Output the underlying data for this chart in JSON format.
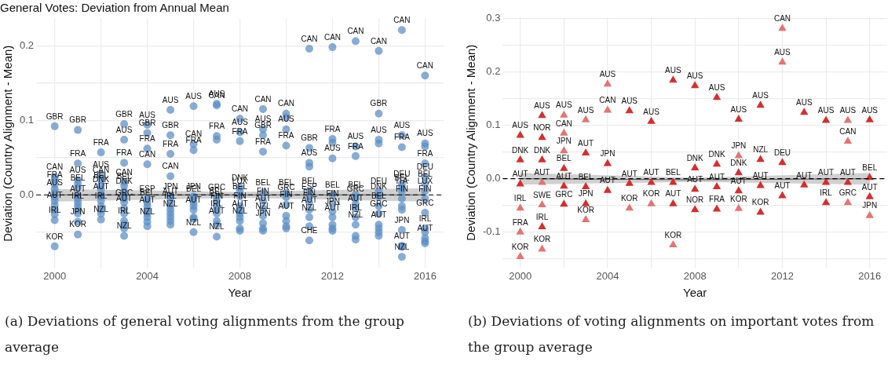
{
  "chart_data": [
    {
      "type": "scatter",
      "title": "General Votes: Deviation from Annual Mean",
      "xlabel": "Year",
      "ylabel": "Deviation (Country Alignment - Mean)",
      "marker": "circle",
      "grid": true,
      "xlim": [
        1999.2,
        2016.8
      ],
      "ylim": [
        -0.098,
        0.236
      ],
      "xticks": [
        2000,
        {
          "value": 2002,
          "label": null
        },
        2004,
        {
          "value": 2006,
          "label": null
        },
        2008,
        {
          "value": 2010,
          "label": null
        },
        2012,
        {
          "value": 2014,
          "label": null
        },
        2016
      ],
      "yticks": [
        {
          "value": -0.05,
          "label": null
        },
        {
          "value": 0,
          "label": "0.0"
        },
        {
          "value": 0.05,
          "label": null
        },
        {
          "value": 0.1,
          "label": "0.1"
        },
        {
          "value": 0.15,
          "label": null
        },
        {
          "value": 0.2,
          "label": "0.2"
        }
      ],
      "ref_lines": [
        {
          "axis": "y",
          "value": 0,
          "color": "#000000",
          "line_style": "dashed"
        }
      ],
      "series": [
        {
          "color": "#5b8ec6",
          "x": [
            2000,
            2000,
            2000,
            2000,
            2000,
            2000,
            2000,
            2000,
            2000,
            2000,
            2000,
            2000,
            2000,
            2001,
            2001,
            2001,
            2001,
            2001,
            2001,
            2001,
            2001,
            2001,
            2001,
            2001,
            2001,
            2001,
            2002,
            2002,
            2002,
            2002,
            2002,
            2002,
            2002,
            2002,
            2002,
            2002,
            2002,
            2002,
            2003,
            2003,
            2003,
            2003,
            2003,
            2003,
            2003,
            2003,
            2003,
            2003,
            2003,
            2003,
            2003,
            2003,
            2003,
            2004,
            2004,
            2004,
            2004,
            2004,
            2004,
            2004,
            2004,
            2004,
            2004,
            2004,
            2004,
            2005,
            2005,
            2005,
            2005,
            2005,
            2005,
            2005,
            2005,
            2005,
            2005,
            2005,
            2005,
            2006,
            2006,
            2006,
            2006,
            2006,
            2006,
            2006,
            2006,
            2006,
            2006,
            2006,
            2007,
            2007,
            2007,
            2007,
            2007,
            2007,
            2007,
            2007,
            2007,
            2007,
            2007,
            2007,
            2008,
            2008,
            2008,
            2008,
            2008,
            2008,
            2008,
            2008,
            2008,
            2008,
            2008,
            2008,
            2008,
            2009,
            2009,
            2009,
            2009,
            2009,
            2009,
            2009,
            2009,
            2009,
            2009,
            2009,
            2010,
            2010,
            2010,
            2010,
            2010,
            2010,
            2010,
            2010,
            2010,
            2010,
            2010,
            2011,
            2011,
            2011,
            2011,
            2011,
            2011,
            2011,
            2011,
            2011,
            2011,
            2011,
            2012,
            2012,
            2012,
            2012,
            2012,
            2012,
            2012,
            2012,
            2012,
            2012,
            2012,
            2013,
            2013,
            2013,
            2013,
            2013,
            2013,
            2013,
            2013,
            2013,
            2013,
            2013,
            2014,
            2014,
            2014,
            2014,
            2014,
            2014,
            2014,
            2014,
            2014,
            2014,
            2014,
            2014,
            2015,
            2015,
            2015,
            2015,
            2015,
            2015,
            2015,
            2015,
            2015,
            2015,
            2015,
            2015,
            2015,
            2016,
            2016,
            2016,
            2016,
            2016,
            2016,
            2016,
            2016,
            2016,
            2016,
            2016,
            2016,
            2016,
            2016
          ],
          "values": [
            0.092,
            0.024,
            0.014,
            0.003,
            -0.014,
            -0.034,
            -0.069,
            0.02,
            0.008,
            -0.003,
            -0.008,
            -0.02,
            -0.026,
            0.087,
            0.042,
            0.02,
            0.01,
            -0.005,
            -0.015,
            -0.036,
            -0.053,
            0.015,
            0,
            -0.01,
            -0.02,
            -0.025,
            0.057,
            0.027,
            0.02,
            0.013,
            0.007,
            -0.002,
            -0.015,
            -0.033,
            0,
            -0.008,
            -0.02,
            -0.025,
            0.095,
            0.074,
            0.043,
            0.017,
            0.012,
            0.005,
            -0.01,
            -0.018,
            -0.035,
            -0.055,
            0,
            -0.005,
            -0.025,
            -0.04,
            -0.045,
            0.094,
            0.083,
            0.062,
            0.041,
            -0.005,
            -0.01,
            -0.02,
            -0.036,
            -0.015,
            -0.025,
            -0.03,
            -0.042,
            0.114,
            0.08,
            0.055,
            0.025,
            -0.002,
            -0.008,
            -0.015,
            -0.025,
            -0.035,
            -0.04,
            -0.03,
            -0.02,
            0.119,
            0.068,
            0.06,
            -0.002,
            -0.005,
            -0.02,
            -0.05,
            -0.01,
            -0.015,
            -0.03,
            -0.032,
            0.122,
            0.12,
            0.079,
            -0.003,
            -0.008,
            -0.015,
            -0.025,
            -0.035,
            -0.056,
            0.074,
            -0.04,
            -0.02,
            0.102,
            0.084,
            0.072,
            0.01,
            0.005,
            -0.002,
            -0.015,
            -0.025,
            -0.035,
            -0.045,
            -0.048,
            -0.03,
            -0.02,
            0.115,
            0.088,
            0.08,
            0.058,
            0.003,
            -0.008,
            -0.018,
            -0.028,
            -0.038,
            -0.045,
            -0.048,
            0.109,
            0.088,
            0.066,
            0.003,
            -0.003,
            -0.013,
            -0.028,
            0.104,
            -0.035,
            -0.042,
            -0.045,
            0.196,
            0.063,
            0.043,
            0.005,
            -0.002,
            -0.01,
            -0.02,
            -0.03,
            -0.061,
            0.038,
            -0.042,
            0.198,
            0.075,
            0.049,
            0,
            -0.012,
            -0.022,
            -0.03,
            0.07,
            -0.04,
            -0.045,
            -0.048,
            0.206,
            0.065,
            0.052,
            0,
            -0.005,
            -0.018,
            -0.03,
            -0.04,
            -0.055,
            -0.06,
            -0.012,
            0.193,
            0.109,
            0.074,
            0.005,
            -0.002,
            -0.015,
            -0.025,
            -0.04,
            0.069,
            -0.045,
            -0.05,
            -0.055,
            0.221,
            0.08,
            0.064,
            0.015,
            0.01,
            0.005,
            -0.005,
            -0.047,
            -0.068,
            -0.083,
            -0.015,
            -0.02,
            -0.07,
            0.16,
            0.069,
            0.042,
            0.024,
            0.015,
            0.005,
            -0.005,
            -0.024,
            -0.045,
            -0.058,
            0.065,
            -0.062,
            -0.065,
            -0.05
          ]
        },
        {
          "type": "line",
          "marker": "none",
          "color": "#555555",
          "x": [
            2000,
            2008,
            2016
          ],
          "values": [
            0,
            0,
            0
          ],
          "lower": [
            -0.009,
            -0.004,
            -0.009
          ],
          "upper": [
            0.008,
            0.004,
            0.009
          ]
        }
      ],
      "annotations": [
        {
          "text": "GBR",
          "x": 2000,
          "y": 0.092
        },
        {
          "text": "CAN",
          "x": 2000,
          "y": 0.024
        },
        {
          "text": "FRA",
          "x": 2000,
          "y": 0.014
        },
        {
          "text": "AUS",
          "x": 2000,
          "y": 0.003
        },
        {
          "text": "AUT",
          "x": 2000,
          "y": -0.014
        },
        {
          "text": "IRL",
          "x": 2000,
          "y": -0.034
        },
        {
          "text": "KOR",
          "x": 2000,
          "y": -0.069
        },
        {
          "text": "GBR",
          "x": 2001,
          "y": 0.087
        },
        {
          "text": "FRA",
          "x": 2001,
          "y": 0.042
        },
        {
          "text": "AUS",
          "x": 2001,
          "y": 0.02
        },
        {
          "text": "BEL",
          "x": 2001,
          "y": 0.01
        },
        {
          "text": "AUT",
          "x": 2001,
          "y": -0.005
        },
        {
          "text": "IRL",
          "x": 2001,
          "y": -0.015
        },
        {
          "text": "JPN",
          "x": 2001,
          "y": -0.036
        },
        {
          "text": "KOR",
          "x": 2001,
          "y": -0.053
        },
        {
          "text": "FRA",
          "x": 2002,
          "y": 0.057
        },
        {
          "text": "AUS",
          "x": 2002,
          "y": 0.027
        },
        {
          "text": "CAN",
          "x": 2002,
          "y": 0.02
        },
        {
          "text": "BEL",
          "x": 2002,
          "y": 0.013
        },
        {
          "text": "DNK",
          "x": 2002,
          "y": 0.007
        },
        {
          "text": "AUT",
          "x": 2002,
          "y": -0.002
        },
        {
          "text": "IRL",
          "x": 2002,
          "y": -0.015
        },
        {
          "text": "NZL",
          "x": 2002,
          "y": -0.033
        },
        {
          "text": "GBR",
          "x": 2003,
          "y": 0.095
        },
        {
          "text": "AUS",
          "x": 2003,
          "y": 0.074
        },
        {
          "text": "FRA",
          "x": 2003,
          "y": 0.043
        },
        {
          "text": "CAN",
          "x": 2003,
          "y": 0.017
        },
        {
          "text": "BEL",
          "x": 2003,
          "y": 0.012
        },
        {
          "text": "DNK",
          "x": 2003,
          "y": 0.005
        },
        {
          "text": "GRC",
          "x": 2003,
          "y": -0.01
        },
        {
          "text": "AUT",
          "x": 2003,
          "y": -0.018
        },
        {
          "text": "IRL",
          "x": 2003,
          "y": -0.035
        },
        {
          "text": "NZL",
          "x": 2003,
          "y": -0.055
        },
        {
          "text": "AUS",
          "x": 2004,
          "y": 0.094
        },
        {
          "text": "GBR",
          "x": 2004,
          "y": 0.083
        },
        {
          "text": "FRA",
          "x": 2004,
          "y": 0.062
        },
        {
          "text": "CAN",
          "x": 2004,
          "y": 0.041
        },
        {
          "text": "ESP",
          "x": 2004,
          "y": -0.005
        },
        {
          "text": "BEL",
          "x": 2004,
          "y": -0.01
        },
        {
          "text": "AUT",
          "x": 2004,
          "y": -0.02
        },
        {
          "text": "NZL",
          "x": 2004,
          "y": -0.036
        },
        {
          "text": "AUS",
          "x": 2005,
          "y": 0.114
        },
        {
          "text": "GBR",
          "x": 2005,
          "y": 0.08
        },
        {
          "text": "FRA",
          "x": 2005,
          "y": 0.055
        },
        {
          "text": "CAN",
          "x": 2005,
          "y": 0.025
        },
        {
          "text": "JPN",
          "x": 2005,
          "y": -0.002
        },
        {
          "text": "AUT",
          "x": 2005,
          "y": -0.008
        },
        {
          "text": "IRL",
          "x": 2005,
          "y": -0.015
        },
        {
          "text": "NZL",
          "x": 2005,
          "y": -0.025
        },
        {
          "text": "AUS",
          "x": 2006,
          "y": 0.119
        },
        {
          "text": "CAN",
          "x": 2006,
          "y": 0.068
        },
        {
          "text": "FRA",
          "x": 2006,
          "y": 0.06
        },
        {
          "text": "JPN",
          "x": 2006,
          "y": -0.002
        },
        {
          "text": "BEL",
          "x": 2006,
          "y": -0.005
        },
        {
          "text": "AUT",
          "x": 2006,
          "y": -0.02
        },
        {
          "text": "NZL",
          "x": 2006,
          "y": -0.05
        },
        {
          "text": "AUS",
          "x": 2007,
          "y": 0.122
        },
        {
          "text": "CAN",
          "x": 2007,
          "y": 0.12
        },
        {
          "text": "FRA",
          "x": 2007,
          "y": 0.079
        },
        {
          "text": "GRC",
          "x": 2007,
          "y": -0.003
        },
        {
          "text": "BEL",
          "x": 2007,
          "y": -0.008
        },
        {
          "text": "FIN",
          "x": 2007,
          "y": -0.015
        },
        {
          "text": "IRL",
          "x": 2007,
          "y": -0.025
        },
        {
          "text": "AUT",
          "x": 2007,
          "y": -0.035
        },
        {
          "text": "NZL",
          "x": 2007,
          "y": -0.056
        },
        {
          "text": "CAN",
          "x": 2008,
          "y": 0.102
        },
        {
          "text": "AUS",
          "x": 2008,
          "y": 0.084
        },
        {
          "text": "FRA",
          "x": 2008,
          "y": 0.072
        },
        {
          "text": "DNK",
          "x": 2008,
          "y": 0.01
        },
        {
          "text": "LUX",
          "x": 2008,
          "y": 0.005
        },
        {
          "text": "BEL",
          "x": 2008,
          "y": -0.002
        },
        {
          "text": "FIN",
          "x": 2008,
          "y": -0.015
        },
        {
          "text": "AUT",
          "x": 2008,
          "y": -0.025
        },
        {
          "text": "NZL",
          "x": 2008,
          "y": -0.035
        },
        {
          "text": "CAN",
          "x": 2009,
          "y": 0.115
        },
        {
          "text": "AUS",
          "x": 2009,
          "y": 0.088
        },
        {
          "text": "GBR",
          "x": 2009,
          "y": 0.08
        },
        {
          "text": "FRA",
          "x": 2009,
          "y": 0.058
        },
        {
          "text": "BEL",
          "x": 2009,
          "y": 0.003
        },
        {
          "text": "FIN",
          "x": 2009,
          "y": -0.008
        },
        {
          "text": "AUT",
          "x": 2009,
          "y": -0.018
        },
        {
          "text": "NZL",
          "x": 2009,
          "y": -0.028
        },
        {
          "text": "JPN",
          "x": 2009,
          "y": -0.038
        },
        {
          "text": "CAN",
          "x": 2010,
          "y": 0.109
        },
        {
          "text": "AUS",
          "x": 2010,
          "y": 0.088
        },
        {
          "text": "FRA",
          "x": 2010,
          "y": 0.066
        },
        {
          "text": "BEL",
          "x": 2010,
          "y": 0.003
        },
        {
          "text": "GRC",
          "x": 2010,
          "y": -0.003
        },
        {
          "text": "FIN",
          "x": 2010,
          "y": -0.013
        },
        {
          "text": "AUT",
          "x": 2010,
          "y": -0.028
        },
        {
          "text": "CAN",
          "x": 2011,
          "y": 0.196
        },
        {
          "text": "GBR",
          "x": 2011,
          "y": 0.063
        },
        {
          "text": "AUS",
          "x": 2011,
          "y": 0.043
        },
        {
          "text": "BEL",
          "x": 2011,
          "y": 0.005
        },
        {
          "text": "ESP",
          "x": 2011,
          "y": -0.002
        },
        {
          "text": "FIN",
          "x": 2011,
          "y": -0.01
        },
        {
          "text": "AUT",
          "x": 2011,
          "y": -0.02
        },
        {
          "text": "NZL",
          "x": 2011,
          "y": -0.03
        },
        {
          "text": "CHE",
          "x": 2011,
          "y": -0.061
        },
        {
          "text": "CAN",
          "x": 2012,
          "y": 0.198
        },
        {
          "text": "FRA",
          "x": 2012,
          "y": 0.075
        },
        {
          "text": "AUS",
          "x": 2012,
          "y": 0.049
        },
        {
          "text": "BEL",
          "x": 2012,
          "y": 0
        },
        {
          "text": "FIN",
          "x": 2012,
          "y": -0.012
        },
        {
          "text": "JPN",
          "x": 2012,
          "y": -0.022
        },
        {
          "text": "AUT",
          "x": 2012,
          "y": -0.03
        },
        {
          "text": "CAN",
          "x": 2013,
          "y": 0.206
        },
        {
          "text": "AUS",
          "x": 2013,
          "y": 0.065
        },
        {
          "text": "FRA",
          "x": 2013,
          "y": 0.052
        },
        {
          "text": "BEL",
          "x": 2013,
          "y": 0
        },
        {
          "text": "GRC",
          "x": 2013,
          "y": -0.005
        },
        {
          "text": "AUT",
          "x": 2013,
          "y": -0.018
        },
        {
          "text": "IRL",
          "x": 2013,
          "y": -0.03
        },
        {
          "text": "NZL",
          "x": 2013,
          "y": -0.04
        },
        {
          "text": "CAN",
          "x": 2014,
          "y": 0.193
        },
        {
          "text": "GBR",
          "x": 2014,
          "y": 0.109
        },
        {
          "text": "AUS",
          "x": 2014,
          "y": 0.074
        },
        {
          "text": "DEU",
          "x": 2014,
          "y": 0.005
        },
        {
          "text": "DNK",
          "x": 2014,
          "y": -0.002
        },
        {
          "text": "BEL",
          "x": 2014,
          "y": -0.015
        },
        {
          "text": "GRC",
          "x": 2014,
          "y": -0.025
        },
        {
          "text": "AUT",
          "x": 2014,
          "y": -0.04
        },
        {
          "text": "CAN",
          "x": 2015,
          "y": 0.221
        },
        {
          "text": "AUS",
          "x": 2015,
          "y": 0.08
        },
        {
          "text": "FRA",
          "x": 2015,
          "y": 0.064
        },
        {
          "text": "DEU",
          "x": 2015,
          "y": 0.015
        },
        {
          "text": "BEL",
          "x": 2015,
          "y": 0.01
        },
        {
          "text": "ITA",
          "x": 2015,
          "y": 0.005
        },
        {
          "text": "FIN",
          "x": 2015,
          "y": -0.005
        },
        {
          "text": "JPN",
          "x": 2015,
          "y": -0.047
        },
        {
          "text": "AUT",
          "x": 2015,
          "y": -0.068
        },
        {
          "text": "NZL",
          "x": 2015,
          "y": -0.083
        },
        {
          "text": "CAN",
          "x": 2016,
          "y": 0.16
        },
        {
          "text": "AUS",
          "x": 2016,
          "y": 0.069
        },
        {
          "text": "FRA",
          "x": 2016,
          "y": 0.042
        },
        {
          "text": "DEU",
          "x": 2016,
          "y": 0.024
        },
        {
          "text": "BEL",
          "x": 2016,
          "y": 0.015
        },
        {
          "text": "LUX",
          "x": 2016,
          "y": 0.005
        },
        {
          "text": "FIN",
          "x": 2016,
          "y": -0.005
        },
        {
          "text": "GRC",
          "x": 2016,
          "y": -0.024
        },
        {
          "text": "IRL",
          "x": 2016,
          "y": -0.045
        },
        {
          "text": "AUT",
          "x": 2016,
          "y": -0.058
        },
        "(a) Deviations of general voting alignments from the group average"
      ]
    },
    {
      "type": "scatter",
      "xlabel": "Year",
      "ylabel": "Deviation (Country Alignment - Mean)",
      "marker": "triangle",
      "grid": true,
      "xlim": [
        1999.2,
        2016.8
      ],
      "ylim": [
        -0.167,
        0.302
      ],
      "xticks": [
        2000,
        {
          "value": 2002,
          "label": null
        },
        2004,
        {
          "value": 2006,
          "label": null
        },
        2008,
        {
          "value": 2010,
          "label": null
        },
        2012,
        {
          "value": 2014,
          "label": null
        },
        2016
      ],
      "yticks": [
        {
          "value": -0.15,
          "label": null
        },
        {
          "value": -0.1,
          "label": "-0.1"
        },
        {
          "value": -0.05,
          "label": null
        },
        {
          "value": 0,
          "label": "0.0"
        },
        {
          "value": 0.05,
          "label": null
        },
        {
          "value": 0.1,
          "label": "0.1"
        },
        {
          "value": 0.15,
          "label": null
        },
        {
          "value": 0.2,
          "label": "0.2"
        },
        {
          "value": 0.25,
          "label": null
        },
        {
          "value": 0.3,
          "label": "0.3"
        }
      ],
      "ref_lines": [
        {
          "axis": "y",
          "value": 0,
          "color": "#000000",
          "line_style": "dashed"
        }
      ],
      "series": [
        {
          "x": [
            2000,
            2000,
            2000,
            2000,
            2000,
            2000,
            2001,
            2001,
            2001,
            2001,
            2001,
            2001,
            2001,
            2002,
            2002,
            2002,
            2002,
            2002,
            2002,
            2003,
            2003,
            2003,
            2003,
            2003,
            2004,
            2004,
            2004,
            2004,
            2005,
            2005,
            2005,
            2006,
            2006,
            2006,
            2007,
            2007,
            2007,
            2007,
            2008,
            2008,
            2008,
            2008,
            2009,
            2009,
            2009,
            2009,
            2010,
            2010,
            2010,
            2010,
            2010,
            2011,
            2011,
            2011,
            2011,
            2012,
            2012,
            2012,
            2012,
            2013,
            2013,
            2014,
            2014,
            2014,
            2015,
            2015,
            2015,
            2015,
            2016,
            2016,
            2016,
            2016
          ],
          "values": [
            0.081,
            0.035,
            -0.01,
            -0.055,
            -0.1,
            -0.146,
            0.118,
            0.077,
            0.035,
            -0.007,
            -0.049,
            -0.09,
            -0.132,
            0.119,
            0.085,
            0.052,
            0.019,
            -0.014,
            -0.048,
            0.11,
            0.048,
            -0.015,
            -0.047,
            -0.077,
            0.177,
            0.128,
            0.028,
            -0.022,
            0.127,
            -0.009,
            -0.055,
            0.107,
            -0.007,
            -0.047,
            0.184,
            -0.007,
            -0.047,
            -0.124,
            0.174,
            0.02,
            -0.02,
            -0.058,
            0.152,
            0.027,
            -0.015,
            -0.057,
            0.111,
            0.043,
            0.011,
            -0.023,
            -0.056,
            0.137,
            0.036,
            -0.013,
            -0.063,
            0.281,
            0.218,
            0.03,
            -0.032,
            0.124,
            -0.012,
            0.109,
            -0.007,
            -0.045,
            0.109,
            0.07,
            -0.007,
            -0.045,
            0.11,
            0.002,
            -0.034,
            -0.069
          ],
          "colors": [
            "#d32f2f",
            "#d32f2f",
            "#d32f2f",
            "#e57373",
            "#e57373",
            "#e57373",
            "#d32f2f",
            "#d32f2f",
            "#d32f2f",
            "#e57373",
            "#e57373",
            "#d32f2f",
            "#e57373",
            "#e57373",
            "#e57373",
            "#e57373",
            "#d32f2f",
            "#d32f2f",
            "#d32f2f",
            "#e57373",
            "#d32f2f",
            "#d32f2f",
            "#d32f2f",
            "#e57373",
            "#e57373",
            "#e57373",
            "#d32f2f",
            "#d32f2f",
            "#d32f2f",
            "#d32f2f",
            "#e57373",
            "#d32f2f",
            "#d32f2f",
            "#e57373",
            "#d32f2f",
            "#d32f2f",
            "#d32f2f",
            "#e57373",
            "#d32f2f",
            "#d32f2f",
            "#d32f2f",
            "#d32f2f",
            "#d32f2f",
            "#d32f2f",
            "#d32f2f",
            "#d32f2f",
            "#d32f2f",
            "#e57373",
            "#d32f2f",
            "#d32f2f",
            "#e57373",
            "#d32f2f",
            "#d32f2f",
            "#d32f2f",
            "#d32f2f",
            "#e57373",
            "#e57373",
            "#d32f2f",
            "#d32f2f",
            "#d32f2f",
            "#d32f2f",
            "#d32f2f",
            "#d32f2f",
            "#d32f2f",
            "#e57373",
            "#e57373",
            "#d32f2f",
            "#e57373",
            "#d32f2f",
            "#d32f2f",
            "#d32f2f",
            "#e57373"
          ]
        },
        {
          "type": "line",
          "marker": "none",
          "color": "#555555",
          "x": [
            2000,
            2008,
            2016
          ],
          "values": [
            0,
            -0.002,
            0
          ],
          "lower": [
            -0.011,
            -0.006,
            -0.011
          ],
          "upper": [
            0.011,
            0.002,
            0.011
          ]
        }
      ],
      "annotations": [
        {
          "text": "AUS",
          "x": 2000,
          "y": 0.081
        },
        {
          "text": "DNK",
          "x": 2000,
          "y": 0.035
        },
        {
          "text": "AUT",
          "x": 2000,
          "y": -0.01
        },
        {
          "text": "IRL",
          "x": 2000,
          "y": -0.055
        },
        {
          "text": "FRA",
          "x": 2000,
          "y": -0.1
        },
        {
          "text": "KOR",
          "x": 2000,
          "y": -0.146
        },
        {
          "text": "AUS",
          "x": 2001,
          "y": 0.118
        },
        {
          "text": "NOR",
          "x": 2001,
          "y": 0.077
        },
        {
          "text": "DNK",
          "x": 2001,
          "y": 0.035
        },
        {
          "text": "AUT",
          "x": 2001,
          "y": -0.007
        },
        {
          "text": "SWE",
          "x": 2001,
          "y": -0.049
        },
        {
          "text": "IRL",
          "x": 2001,
          "y": -0.09
        },
        {
          "text": "KOR",
          "x": 2001,
          "y": -0.132
        },
        {
          "text": "AUS",
          "x": 2002,
          "y": 0.119
        },
        {
          "text": "CAN",
          "x": 2002,
          "y": 0.085
        },
        {
          "text": "JPN",
          "x": 2002,
          "y": 0.052
        },
        {
          "text": "BEL",
          "x": 2002,
          "y": 0.019
        },
        {
          "text": "AUT",
          "x": 2002,
          "y": -0.014
        },
        {
          "text": "GRC",
          "x": 2002,
          "y": -0.048
        },
        {
          "text": "AUS",
          "x": 2003,
          "y": 0.11
        },
        {
          "text": "AUT",
          "x": 2003,
          "y": 0.048
        },
        {
          "text": "BEL",
          "x": 2003,
          "y": -0.015
        },
        {
          "text": "JPN",
          "x": 2003,
          "y": -0.047
        },
        {
          "text": "KOR",
          "x": 2003,
          "y": -0.077
        },
        {
          "text": "AUS",
          "x": 2004,
          "y": 0.177
        },
        {
          "text": "CAN",
          "x": 2004,
          "y": 0.128
        },
        {
          "text": "JPN",
          "x": 2004,
          "y": 0.028
        },
        {
          "text": "AUT",
          "x": 2004,
          "y": -0.022
        },
        {
          "text": "AUS",
          "x": 2005,
          "y": 0.127
        },
        {
          "text": "AUT",
          "x": 2005,
          "y": -0.009
        },
        {
          "text": "KOR",
          "x": 2005,
          "y": -0.055
        },
        {
          "text": "AUS",
          "x": 2006,
          "y": 0.107
        },
        {
          "text": "AUT",
          "x": 2006,
          "y": -0.007
        },
        {
          "text": "KOR",
          "x": 2006,
          "y": -0.047
        },
        {
          "text": "AUS",
          "x": 2007,
          "y": 0.184
        },
        {
          "text": "BEL",
          "x": 2007,
          "y": -0.007
        },
        {
          "text": "AUT",
          "x": 2007,
          "y": -0.047
        },
        {
          "text": "KOR",
          "x": 2007,
          "y": -0.124
        },
        {
          "text": "AUS",
          "x": 2008,
          "y": 0.174
        },
        {
          "text": "DNK",
          "x": 2008,
          "y": 0.02
        },
        {
          "text": "AUT",
          "x": 2008,
          "y": -0.02
        },
        {
          "text": "NOR",
          "x": 2008,
          "y": -0.058
        },
        {
          "text": "AUS",
          "x": 2009,
          "y": 0.152
        },
        {
          "text": "DNK",
          "x": 2009,
          "y": 0.027
        },
        {
          "text": "AUT",
          "x": 2009,
          "y": -0.015
        },
        {
          "text": "FRA",
          "x": 2009,
          "y": -0.057
        },
        {
          "text": "AUS",
          "x": 2010,
          "y": 0.111
        },
        {
          "text": "JPN",
          "x": 2010,
          "y": 0.043
        },
        {
          "text": "DNK",
          "x": 2010,
          "y": 0.011
        },
        {
          "text": "AUT",
          "x": 2010,
          "y": -0.023
        },
        {
          "text": "KOR",
          "x": 2010,
          "y": -0.056
        },
        {
          "text": "AUS",
          "x": 2011,
          "y": 0.137
        },
        {
          "text": "NZL",
          "x": 2011,
          "y": 0.036
        },
        {
          "text": "AUT",
          "x": 2011,
          "y": -0.013
        },
        {
          "text": "KOR",
          "x": 2011,
          "y": -0.063
        },
        {
          "text": "CAN",
          "x": 2012,
          "y": 0.281
        },
        {
          "text": "AUS",
          "x": 2012,
          "y": 0.218
        },
        {
          "text": "DEU",
          "x": 2012,
          "y": 0.03
        },
        {
          "text": "AUT",
          "x": 2012,
          "y": -0.032
        },
        {
          "text": "AUS",
          "x": 2013,
          "y": 0.124
        },
        {
          "text": "AUT",
          "x": 2013,
          "y": -0.012
        },
        {
          "text": "AUS",
          "x": 2014,
          "y": 0.109
        },
        {
          "text": "AUT",
          "x": 2014,
          "y": -0.007
        },
        {
          "text": "IRL",
          "x": 2014,
          "y": -0.045
        },
        {
          "text": "AUS",
          "x": 2015,
          "y": 0.109
        },
        {
          "text": "CAN",
          "x": 2015,
          "y": 0.07
        },
        {
          "text": "AUT",
          "x": 2015,
          "y": -0.007
        },
        {
          "text": "GRC",
          "x": 2015,
          "y": -0.045
        },
        {
          "text": "AUS",
          "x": 2016,
          "y": 0.11
        },
        {
          "text": "BEL",
          "x": 2016,
          "y": 0.002
        },
        {
          "text": "AUT",
          "x": 2016,
          "y": -0.034
        },
        {
          "text": "JPN",
          "x": 2016,
          "y": -0.069
        },
        "(b) Deviations of voting alignments on important votes from the group average"
      ]
    }
  ]
}
